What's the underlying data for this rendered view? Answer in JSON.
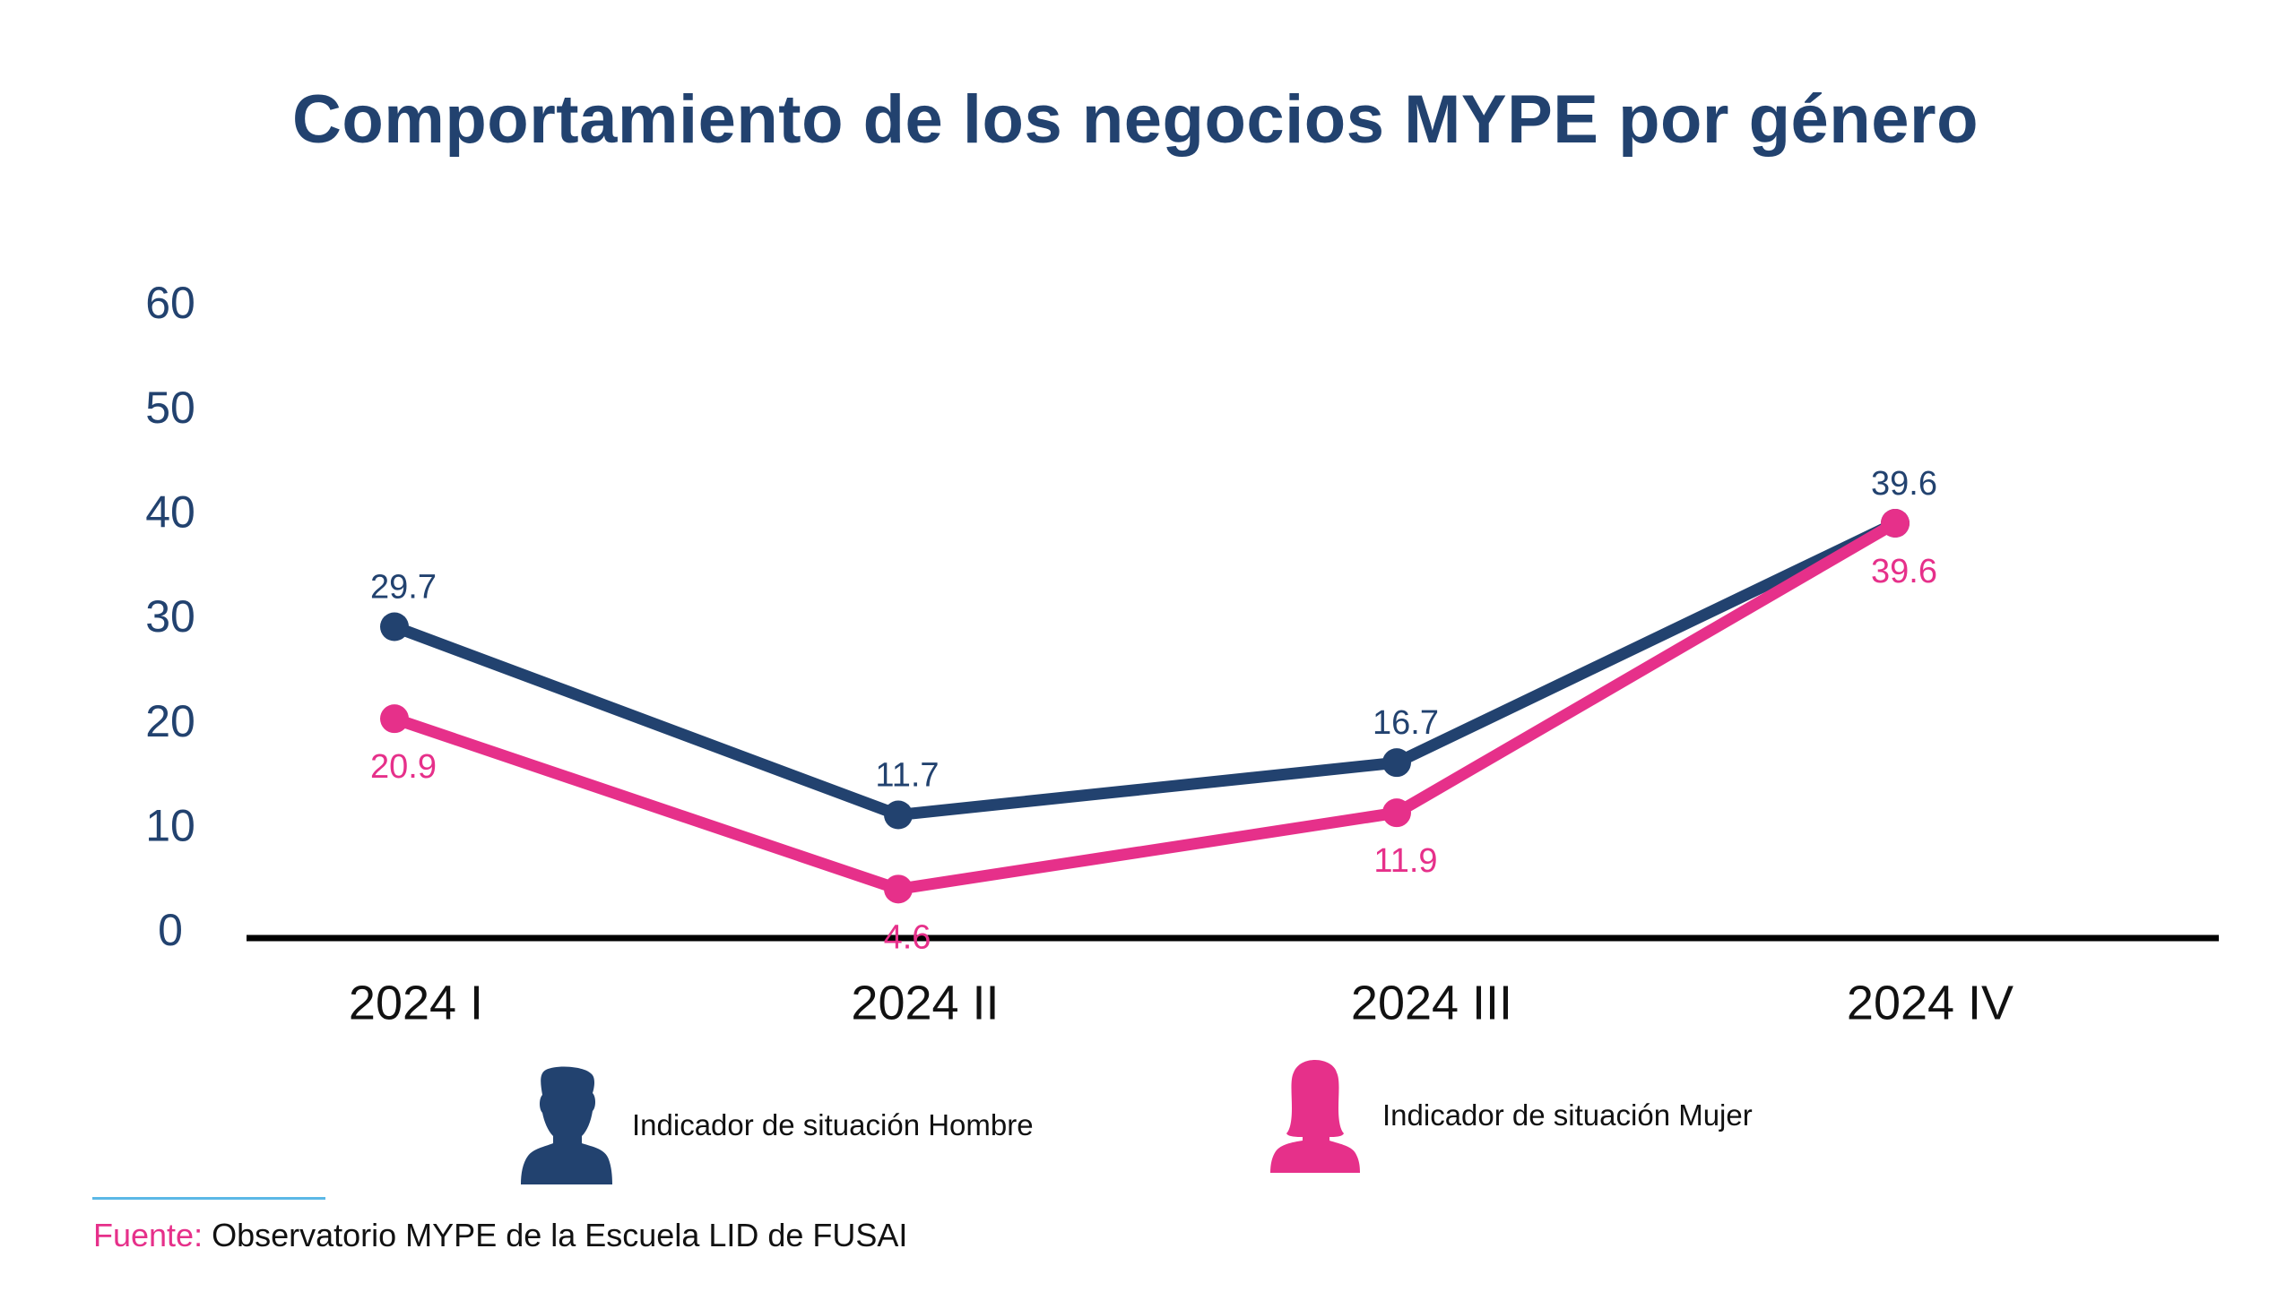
{
  "colors": {
    "hombre": "#22426F",
    "mujer": "#E6308A",
    "title": "#22426F",
    "axis": "#000000",
    "source_rule": "#5BB8E6"
  },
  "legend": [
    {
      "label": "Indicador de situación Hombre",
      "icon": "male-person-icon"
    },
    {
      "label": "Indicador de situación Mujer",
      "icon": "female-person-icon"
    }
  ],
  "source": {
    "label": "Fuente:",
    "text": " Observatorio MYPE de la Escuela LID de FUSAI"
  },
  "chart_data": {
    "type": "line",
    "title": "Comportamiento de los negocios MYPE por género",
    "xlabel": "",
    "ylabel": "",
    "categories": [
      "2024 I",
      "2024 II",
      "2024 III",
      "2024 IV"
    ],
    "yticks": [
      0,
      10,
      20,
      30,
      40,
      50,
      60
    ],
    "ylim": [
      0,
      60
    ],
    "grid": false,
    "legend_position": "bottom",
    "series": [
      {
        "name": "Indicador de situación Hombre",
        "key": "hombre",
        "values": [
          29.7,
          11.7,
          16.7,
          39.6
        ],
        "labels": [
          "29.7",
          "11.7",
          "16.7",
          "39.6"
        ],
        "label_side": "above"
      },
      {
        "name": "Indicador de situación Mujer",
        "key": "mujer",
        "values": [
          20.9,
          4.6,
          11.9,
          39.6
        ],
        "labels": [
          "20.9",
          "4.6",
          "11.9",
          "39.6"
        ],
        "label_side": "below"
      }
    ]
  }
}
